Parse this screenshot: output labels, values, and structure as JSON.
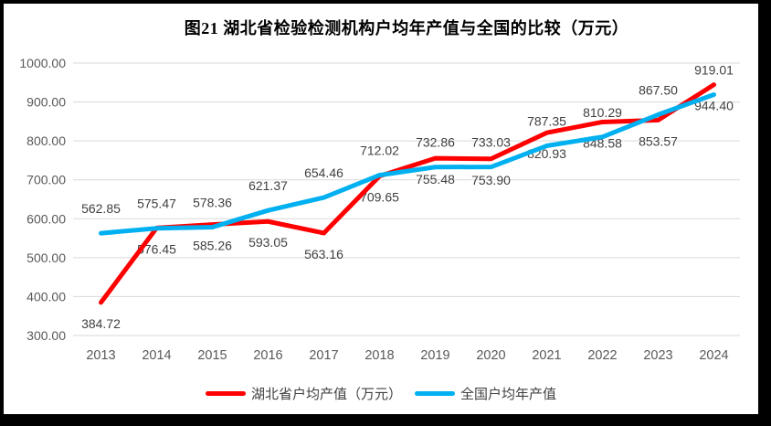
{
  "title": "图21 湖北省检验检测机构户均年产值与全国的比较（万元）",
  "legend": [
    {
      "label": "湖北省户均产值（万元）",
      "color": "#FF0000"
    },
    {
      "label": "全国户均年产值",
      "color": "#00B0F0"
    }
  ],
  "chart_data": {
    "type": "line",
    "title": "图21 湖北省检验检测机构户均年产值与全国的比较（万元）",
    "categories": [
      "2013",
      "2014",
      "2015",
      "2016",
      "2017",
      "2018",
      "2019",
      "2020",
      "2021",
      "2022",
      "2023",
      "2024"
    ],
    "series": [
      {
        "name": "湖北省户均产值（万元）",
        "color": "#FF0000",
        "label_position": "below",
        "values": [
          384.72,
          576.45,
          585.26,
          593.05,
          563.16,
          709.65,
          755.48,
          753.9,
          820.93,
          848.58,
          853.57,
          944.4
        ]
      },
      {
        "name": "全国户均年产值",
        "color": "#00B0F0",
        "label_position": "above",
        "values": [
          562.85,
          575.47,
          578.36,
          621.37,
          654.46,
          712.02,
          732.86,
          733.03,
          787.35,
          810.29,
          867.5,
          919.01
        ]
      }
    ],
    "xlabel": "",
    "ylabel": "",
    "ylim": [
      300,
      1000
    ],
    "y_tick_step": 100,
    "y_tick_format": "2dp",
    "grid": true,
    "legend_position": "bottom",
    "gridline_color": "#D9D9D9",
    "tick_label_color": "#595959",
    "data_label_color": "#404040"
  }
}
